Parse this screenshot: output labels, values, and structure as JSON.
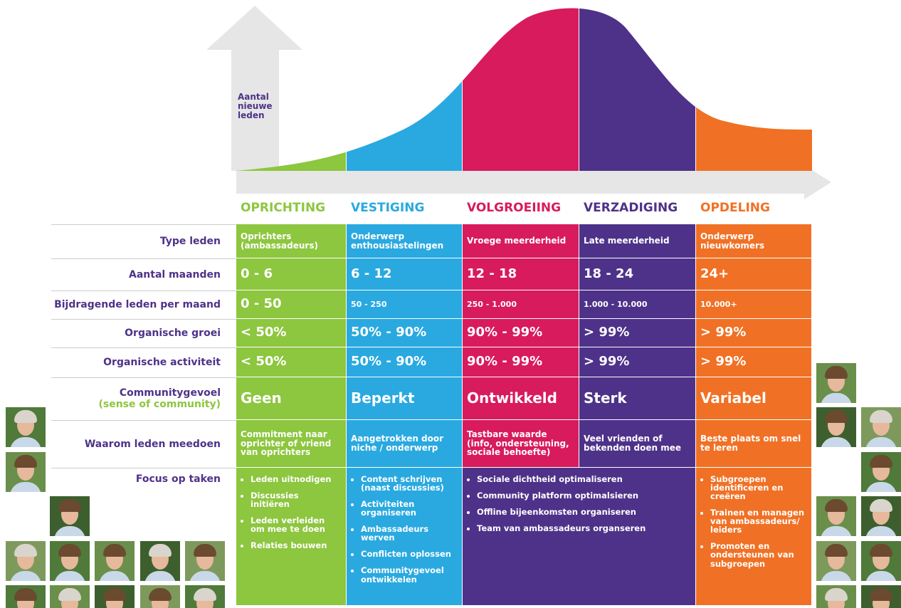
{
  "axis_label": "Aantal nieuwe leden",
  "phases": [
    "OPRICHTING",
    "VESTIGING",
    "VOLGROEIING",
    "VERZADIGING",
    "OPDELING"
  ],
  "rows": [
    {
      "label": "Type leden",
      "cells": [
        "Oprichters (ambassadeurs)",
        "Onderwerp enthousiastelingen",
        "Vroege meerderheid",
        "Late meerderheid",
        "Onderwerp nieuwkomers"
      ]
    },
    {
      "label": "Aantal maanden",
      "cells": [
        "0 - 6",
        "6 - 12",
        "12 - 18",
        "18 - 24",
        "24+"
      ]
    },
    {
      "label": "Bijdragende leden per maand",
      "cells": [
        "0 - 50",
        "50 - 250",
        "250 - 1.000",
        "1.000 - 10.000",
        "10.000+"
      ]
    },
    {
      "label": "Organische groei",
      "cells": [
        "< 50%",
        "50% - 90%",
        "90% - 99%",
        "> 99%",
        "> 99%"
      ]
    },
    {
      "label": "Organische activiteit",
      "cells": [
        "< 50%",
        "50% - 90%",
        "90% - 99%",
        "> 99%",
        "> 99%"
      ]
    },
    {
      "label": "Communitygevoel",
      "sublabel": "(sense of community)",
      "cells": [
        "Geen",
        "Beperkt",
        "Ontwikkeld",
        "Sterk",
        "Variabel"
      ]
    },
    {
      "label": "Waarom leden meedoen",
      "cells": [
        "Commitment naar oprichter of vriend van oprichters",
        "Aangetrokken door niche / onderwerp",
        "Tastbare waarde (info, ondersteuning, sociale behoefte)",
        "Veel vrienden of bekenden doen mee",
        "Beste plaats om snel te leren"
      ]
    }
  ],
  "focus": {
    "label": "Focus op taken",
    "cells": [
      [
        "Leden uitnodigen",
        "Discussies initiëren",
        "Leden verleiden om mee te doen",
        "Relaties bouwen"
      ],
      [
        "Content schrijven (naast discussies)",
        "Activiteiten organiseren",
        "Ambassadeurs werven",
        "Conflicten oplossen",
        "Communitygevoel ontwikkelen"
      ],
      [
        "Sociale dichtheid optimaliseren",
        "Community platform optimalsieren",
        "Offline bijeenkomsten organiseren",
        "Team van ambassadeurs organseren"
      ],
      [
        "Subgroepen identificeren en creëren",
        "Trainen en managen van ambassadeurs/ leiders",
        "Promoten en ondersteunen van subgroepen"
      ]
    ]
  }
}
